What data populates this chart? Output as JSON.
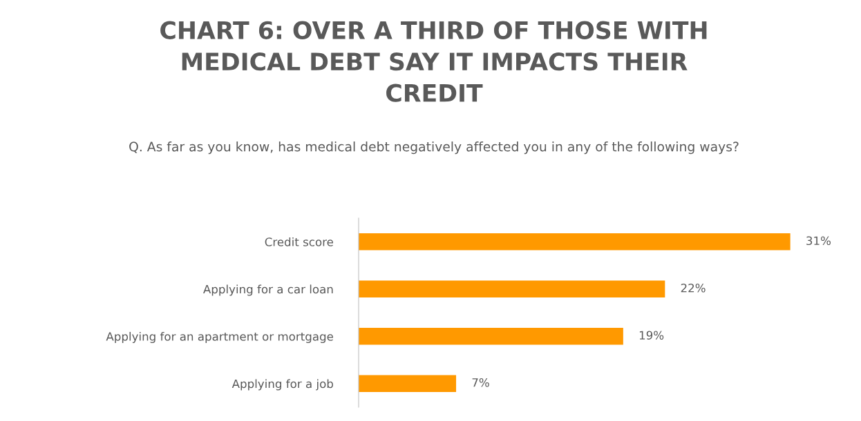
{
  "chart_data": {
    "type": "bar",
    "orientation": "horizontal",
    "title": "CHART 6: OVER A THIRD OF THOSE WITH MEDICAL DEBT SAY IT IMPACTS THEIR CREDIT",
    "subtitle": "Q. As far as you know, has medical debt negatively affected you in any of the following ways?",
    "categories": [
      "Credit score",
      "Applying for a car loan",
      "Applying for an apartment or mortgage",
      "Applying for a job"
    ],
    "values": [
      31,
      22,
      19,
      7
    ],
    "value_labels": [
      "31%",
      "22%",
      "19%",
      "7%"
    ],
    "color": "#ff9900",
    "grid": false,
    "legend": false
  }
}
